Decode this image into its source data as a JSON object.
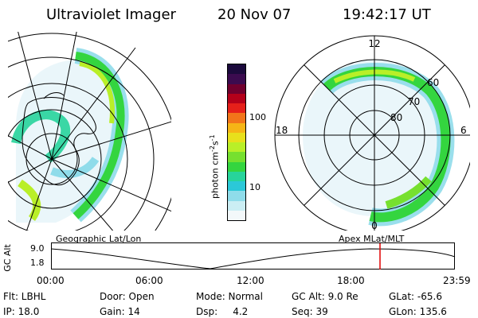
{
  "header": {
    "title": "Ultraviolet Imager",
    "date": "20 Nov 07",
    "time": "19:42:17 UT"
  },
  "left_panel": {
    "caption": "Geographic Lat/Lon"
  },
  "right_panel": {
    "caption": "Apex  MLat/MLT",
    "mlt_labels": [
      "12",
      "18",
      "6",
      "0"
    ],
    "lat_labels": [
      "60",
      "70",
      "80"
    ]
  },
  "colorbar": {
    "unit": "photon cm",
    "exp1": "-2",
    "mid": "s",
    "exp2": "-1",
    "ticks": [
      "100",
      "10"
    ],
    "colors": [
      "#1b0a3c",
      "#3b0b4f",
      "#70002e",
      "#b4001a",
      "#e5201a",
      "#f2751a",
      "#f6b516",
      "#e8e01c",
      "#b9ef28",
      "#76e02f",
      "#34d53f",
      "#27d49b",
      "#2bc8d8",
      "#8fdcea",
      "#cbeef4",
      "#f3f8fa"
    ]
  },
  "timeline": {
    "ylabel": "GC Alt",
    "ytick_top": "9.0",
    "ytick_bottom": "1.8",
    "xticks": [
      "00:00",
      "06:00",
      "12:00",
      "18:00",
      "23:59"
    ],
    "marker_color": "#e00000"
  },
  "info": {
    "flt": "Flt: LBHL",
    "ip": "IP: 18.0",
    "door": "Door: Open",
    "gain": "Gain: 14",
    "mode": "Mode: Normal",
    "dsp": "Dsp:     4.2",
    "gcalt": "GC Alt: 9.0 Re",
    "seq": "Seq: 39",
    "glat": "GLat: -65.6",
    "glon": "GLon: 135.6"
  }
}
